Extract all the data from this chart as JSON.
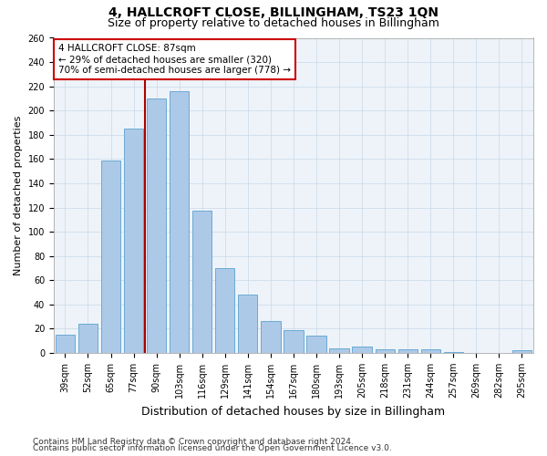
{
  "title": "4, HALLCROFT CLOSE, BILLINGHAM, TS23 1QN",
  "subtitle": "Size of property relative to detached houses in Billingham",
  "xlabel": "Distribution of detached houses by size in Billingham",
  "ylabel": "Number of detached properties",
  "categories": [
    "39sqm",
    "52sqm",
    "65sqm",
    "77sqm",
    "90sqm",
    "103sqm",
    "116sqm",
    "129sqm",
    "141sqm",
    "154sqm",
    "167sqm",
    "180sqm",
    "193sqm",
    "205sqm",
    "218sqm",
    "231sqm",
    "244sqm",
    "257sqm",
    "269sqm",
    "282sqm",
    "295sqm"
  ],
  "values": [
    15,
    24,
    159,
    185,
    210,
    216,
    117,
    70,
    48,
    26,
    19,
    14,
    4,
    5,
    3,
    3,
    3,
    1,
    0,
    0,
    2
  ],
  "bar_color": "#adc9e8",
  "bar_edge_color": "#6aaad4",
  "vline_xindex": 4,
  "vline_color": "#aa0000",
  "annotation_line1": "4 HALLCROFT CLOSE: 87sqm",
  "annotation_line2": "← 29% of detached houses are smaller (320)",
  "annotation_line3": "70% of semi-detached houses are larger (778) →",
  "annotation_box_color": "#ffffff",
  "annotation_box_edge": "#cc0000",
  "ylim": [
    0,
    260
  ],
  "yticks": [
    0,
    20,
    40,
    60,
    80,
    100,
    120,
    140,
    160,
    180,
    200,
    220,
    240,
    260
  ],
  "footnote1": "Contains HM Land Registry data © Crown copyright and database right 2024.",
  "footnote2": "Contains public sector information licensed under the Open Government Licence v3.0.",
  "plot_bg_color": "#edf3f9",
  "grid_color": "#c8d8e8",
  "title_fontsize": 10,
  "subtitle_fontsize": 9,
  "xlabel_fontsize": 9,
  "ylabel_fontsize": 8,
  "tick_fontsize": 7,
  "annotation_fontsize": 7.5,
  "footnote_fontsize": 6.5
}
